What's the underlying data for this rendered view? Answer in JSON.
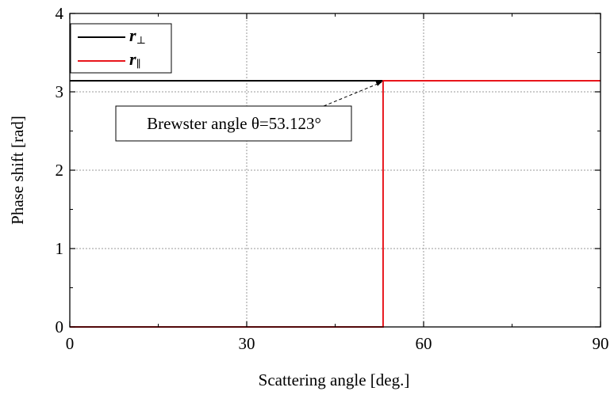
{
  "chart_data": {
    "type": "line",
    "xlabel": "Scattering angle [deg.]",
    "ylabel": "Phase shift [rad]",
    "xlim": [
      0,
      90
    ],
    "ylim": [
      0,
      4
    ],
    "xticks": [
      0,
      30,
      60,
      90
    ],
    "xtick_labels": [
      "0",
      "30",
      "60",
      "90"
    ],
    "yticks": [
      0,
      1,
      2,
      3,
      4
    ],
    "ytick_labels": [
      "0",
      "1",
      "2",
      "3",
      "4"
    ],
    "grid": true,
    "legend_position": "top-left",
    "series": [
      {
        "name": "r⊥",
        "legend_base": "r",
        "legend_sub": "⊥",
        "color": "#000000",
        "x": [
          0,
          90
        ],
        "y": [
          3.1416,
          3.1416
        ]
      },
      {
        "name": "r∥",
        "legend_base": "r",
        "legend_sub": "∥",
        "color": "#e8151b",
        "x": [
          0,
          53.123,
          53.123,
          90
        ],
        "y": [
          0,
          0,
          3.1416,
          3.1416
        ]
      }
    ],
    "annotation": {
      "text": "Brewster angle θ=53.123°",
      "x": 53.123,
      "y": 3.1416
    }
  }
}
